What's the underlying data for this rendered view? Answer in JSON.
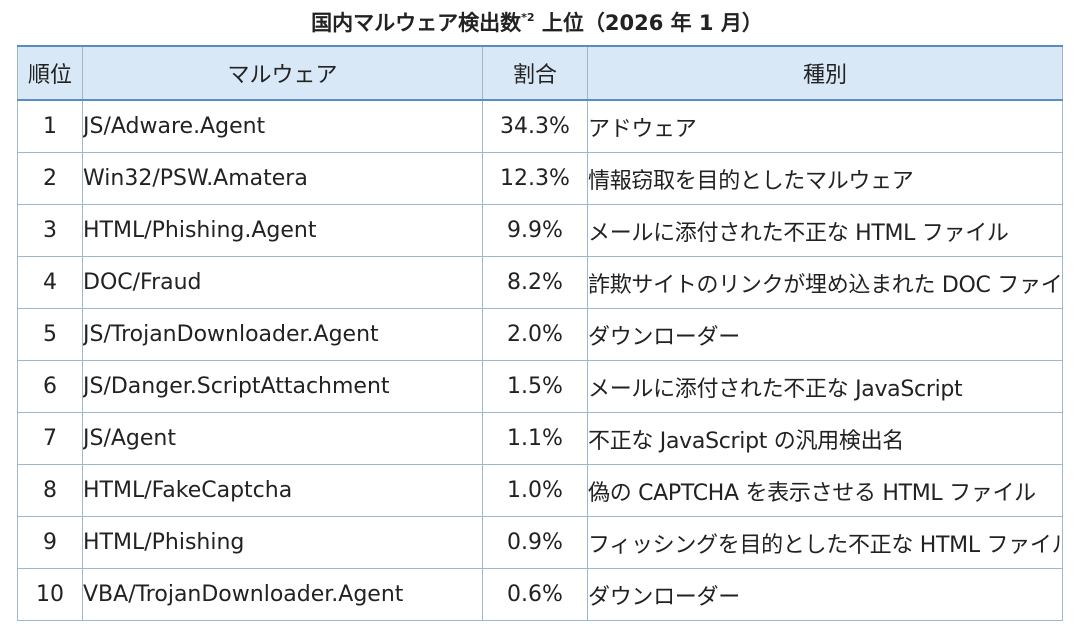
{
  "title": {
    "main": "国内マルウェア検出数",
    "note_mark": "*2",
    "rest": " 上位（2026 年 1 月）"
  },
  "columns": {
    "rank": "順位",
    "name": "マルウェア",
    "ratio": "割合",
    "type": "種別"
  },
  "rows": [
    {
      "rank": "1",
      "name": "JS/Adware.Agent",
      "ratio": "34.3%",
      "type": "アドウェア"
    },
    {
      "rank": "2",
      "name": "Win32/PSW.Amatera",
      "ratio": "12.3%",
      "type": "情報窃取を目的としたマルウェア"
    },
    {
      "rank": "3",
      "name": "HTML/Phishing.Agent",
      "ratio": "9.9%",
      "type": "メールに添付された不正な HTML ファイル"
    },
    {
      "rank": "4",
      "name": "DOC/Fraud",
      "ratio": "8.2%",
      "type": "詐欺サイトのリンクが埋め込まれた DOC ファイル"
    },
    {
      "rank": "5",
      "name": "JS/TrojanDownloader.Agent",
      "ratio": "2.0%",
      "type": "ダウンローダー"
    },
    {
      "rank": "6",
      "name": "JS/Danger.ScriptAttachment",
      "ratio": "1.5%",
      "type": "メールに添付された不正な JavaScript"
    },
    {
      "rank": "7",
      "name": "JS/Agent",
      "ratio": "1.1%",
      "type": "不正な JavaScript の汎用検出名"
    },
    {
      "rank": "8",
      "name": "HTML/FakeCaptcha",
      "ratio": "1.0%",
      "type": "偽の CAPTCHA を表示させる HTML ファイル"
    },
    {
      "rank": "9",
      "name": "HTML/Phishing",
      "ratio": "0.9%",
      "type": "フィッシングを目的とした不正な HTML ファイル"
    },
    {
      "rank": "10",
      "name": "VBA/TrojanDownloader.Agent",
      "ratio": "0.6%",
      "type": "ダウンローダー"
    }
  ]
}
